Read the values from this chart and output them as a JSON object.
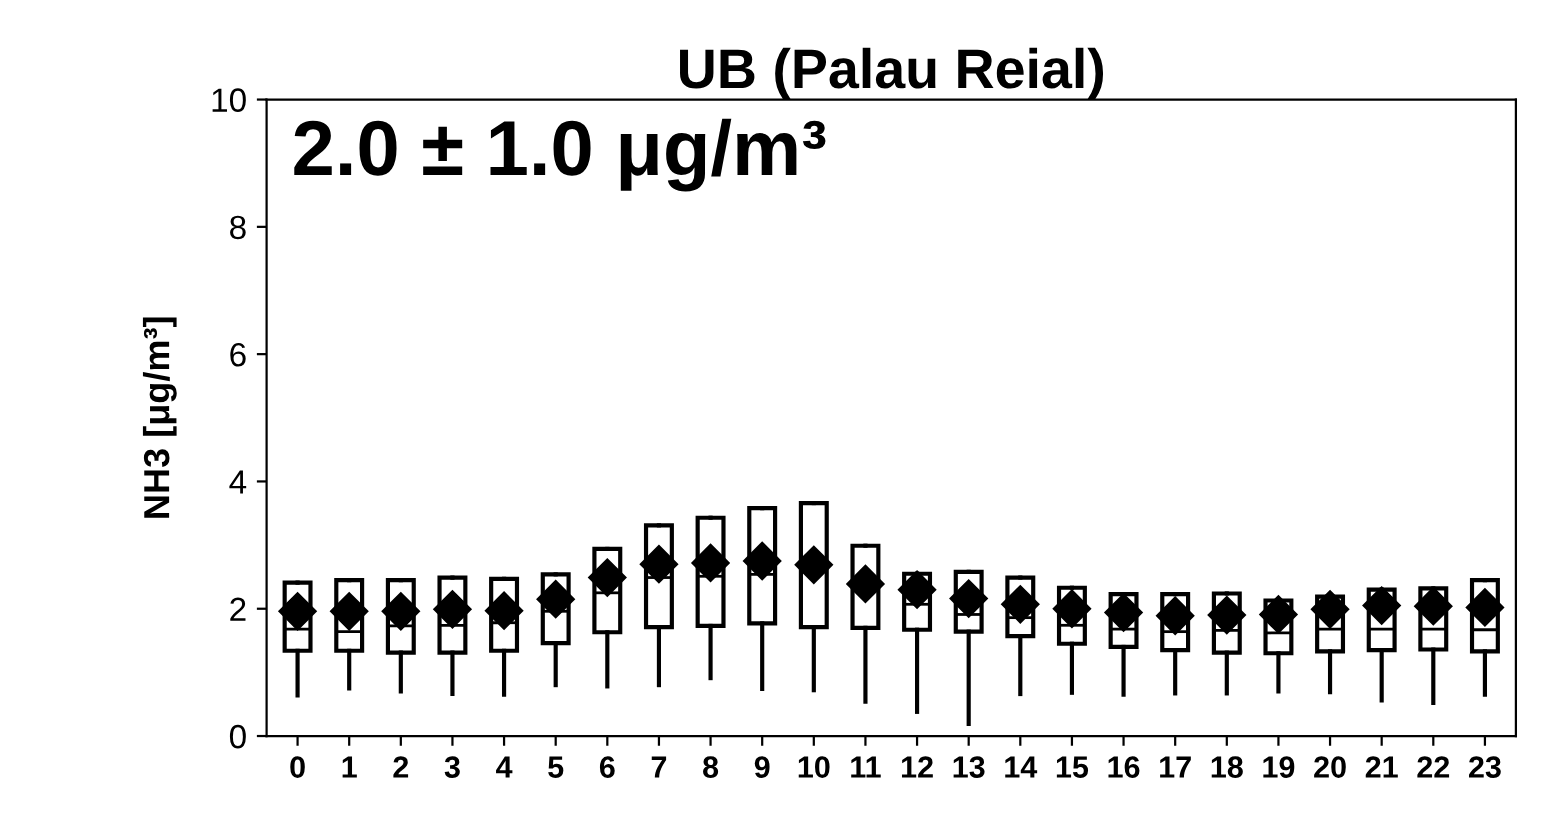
{
  "chart_data": {
    "type": "box",
    "title": "UB (Palau Reial)",
    "ylabel": "NH3 [μg/m³]",
    "annotations": [
      "2.0 ± 1.0 μg/m³"
    ],
    "categories": [
      "0",
      "1",
      "2",
      "3",
      "4",
      "5",
      "6",
      "7",
      "8",
      "9",
      "10",
      "11",
      "12",
      "13",
      "14",
      "15",
      "16",
      "17",
      "18",
      "19",
      "20",
      "21",
      "22",
      "23"
    ],
    "ylim": [
      0,
      10
    ],
    "yticks": [
      0,
      2,
      4,
      6,
      8,
      10
    ],
    "grid": false,
    "legend": false,
    "marker": "diamond",
    "boxes": [
      {
        "low": 0.64,
        "q1": 1.34,
        "median": 1.68,
        "q3": 2.41,
        "high": 2.41,
        "mean": 1.96
      },
      {
        "low": 0.75,
        "q1": 1.34,
        "median": 1.64,
        "q3": 2.45,
        "high": 2.45,
        "mean": 1.96
      },
      {
        "low": 0.7,
        "q1": 1.31,
        "median": 1.73,
        "q3": 2.45,
        "high": 2.45,
        "mean": 1.96
      },
      {
        "low": 0.66,
        "q1": 1.31,
        "median": 1.74,
        "q3": 2.49,
        "high": 2.49,
        "mean": 1.99
      },
      {
        "low": 0.65,
        "q1": 1.34,
        "median": 1.78,
        "q3": 2.47,
        "high": 2.47,
        "mean": 1.97
      },
      {
        "low": 0.8,
        "q1": 1.46,
        "median": 1.96,
        "q3": 2.54,
        "high": 2.54,
        "mean": 2.15
      },
      {
        "low": 0.78,
        "q1": 1.63,
        "median": 2.25,
        "q3": 2.94,
        "high": 2.94,
        "mean": 2.49
      },
      {
        "low": 0.8,
        "q1": 1.71,
        "median": 2.49,
        "q3": 3.31,
        "high": 3.31,
        "mean": 2.7
      },
      {
        "low": 0.91,
        "q1": 1.73,
        "median": 2.51,
        "q3": 3.43,
        "high": 3.43,
        "mean": 2.72
      },
      {
        "low": 0.74,
        "q1": 1.77,
        "median": 2.54,
        "q3": 3.58,
        "high": 3.58,
        "mean": 2.75
      },
      {
        "low": 0.72,
        "q1": 1.71,
        "median": 2.58,
        "q3": 3.66,
        "high": 3.66,
        "mean": 2.69
      },
      {
        "low": 0.54,
        "q1": 1.7,
        "median": 2.39,
        "q3": 2.99,
        "high": 2.99,
        "mean": 2.39
      },
      {
        "low": 0.38,
        "q1": 1.67,
        "median": 2.07,
        "q3": 2.55,
        "high": 2.55,
        "mean": 2.3
      },
      {
        "low": 0.19,
        "q1": 1.64,
        "median": 1.91,
        "q3": 2.58,
        "high": 2.58,
        "mean": 2.16
      },
      {
        "low": 0.66,
        "q1": 1.57,
        "median": 1.86,
        "q3": 2.49,
        "high": 2.49,
        "mean": 2.07
      },
      {
        "low": 0.68,
        "q1": 1.45,
        "median": 1.74,
        "q3": 2.33,
        "high": 2.33,
        "mean": 2.0
      },
      {
        "low": 0.65,
        "q1": 1.4,
        "median": 1.68,
        "q3": 2.23,
        "high": 2.23,
        "mean": 1.94
      },
      {
        "low": 0.67,
        "q1": 1.35,
        "median": 1.64,
        "q3": 2.23,
        "high": 2.23,
        "mean": 1.89
      },
      {
        "low": 0.67,
        "q1": 1.31,
        "median": 1.66,
        "q3": 2.24,
        "high": 2.24,
        "mean": 1.9
      },
      {
        "low": 0.7,
        "q1": 1.3,
        "median": 1.62,
        "q3": 2.13,
        "high": 2.13,
        "mean": 1.91
      },
      {
        "low": 0.69,
        "q1": 1.33,
        "median": 1.68,
        "q3": 2.19,
        "high": 2.19,
        "mean": 1.99
      },
      {
        "low": 0.56,
        "q1": 1.35,
        "median": 1.68,
        "q3": 2.3,
        "high": 2.3,
        "mean": 2.05
      },
      {
        "low": 0.52,
        "q1": 1.36,
        "median": 1.68,
        "q3": 2.32,
        "high": 2.32,
        "mean": 2.04
      },
      {
        "low": 0.65,
        "q1": 1.33,
        "median": 1.67,
        "q3": 2.45,
        "high": 2.45,
        "mean": 2.02
      }
    ]
  }
}
